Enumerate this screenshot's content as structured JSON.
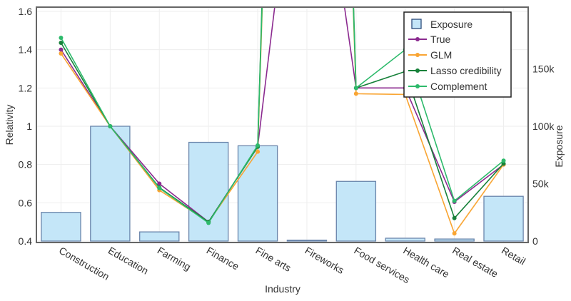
{
  "chart_data": {
    "type": "bar+line",
    "xlabel": "Industry",
    "ylabel": "Relativity",
    "y2label": "Exposure",
    "ylim": [
      0.4,
      1.6
    ],
    "y2lim": [
      0,
      200000
    ],
    "yticks": [
      "0.4",
      "0.6",
      "0.8",
      "1",
      "1.2",
      "1.4",
      "1.6"
    ],
    "y2ticks": [
      "0",
      "50k",
      "100k",
      "150k"
    ],
    "grid": true,
    "legend_position": "top-right",
    "categories": [
      "Construction",
      "Education",
      "Farming",
      "Finance",
      "Fine arts",
      "Fireworks",
      "Food services",
      "Health care",
      "Real estate",
      "Retail"
    ],
    "bars": {
      "name": "Exposure",
      "color": "#c4e6f8",
      "edge": "#6a85ab",
      "values": [
        25000,
        100000,
        8000,
        86000,
        83000,
        800,
        52000,
        2500,
        1800,
        39000
      ]
    },
    "series": [
      {
        "name": "True",
        "color": "#8b2a8f",
        "values": [
          1.4,
          1.0,
          0.7,
          0.5,
          0.895,
          3.0,
          1.2,
          1.2,
          0.605,
          0.8
        ]
      },
      {
        "name": "GLM",
        "color": "#f9a533",
        "values": [
          1.38,
          1.0,
          0.666,
          0.5,
          0.867,
          9.0,
          1.17,
          1.166,
          0.44,
          0.8
        ]
      },
      {
        "name": "Lasso credibility",
        "color": "#17813a",
        "values": [
          1.436,
          1.0,
          0.68,
          0.5,
          0.893,
          9.5,
          1.2,
          1.286,
          0.52,
          0.805
        ]
      },
      {
        "name": "Complement",
        "color": "#2dba6b",
        "values": [
          1.462,
          1.0,
          0.677,
          0.495,
          0.9,
          9.0,
          1.2,
          1.4,
          0.61,
          0.82
        ]
      }
    ]
  }
}
